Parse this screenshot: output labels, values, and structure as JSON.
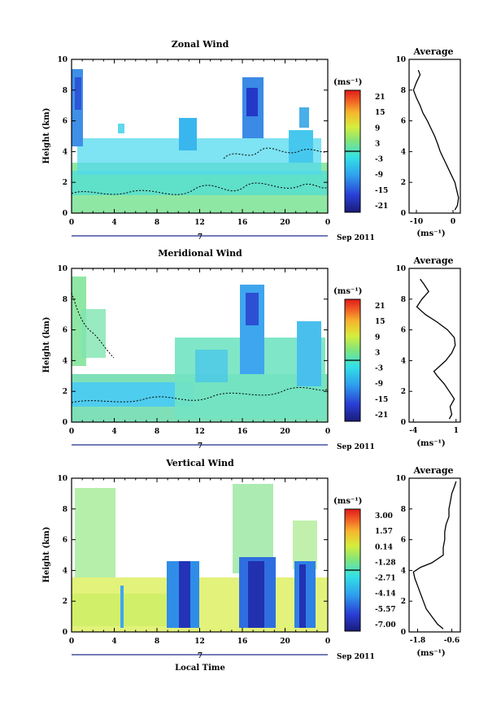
{
  "x_axis_label": "Local Time",
  "y_axis_label": "Height (km)",
  "avg_title": "Average",
  "unit": "(ms⁻¹)",
  "date": "Sep 2011",
  "day_label": "7",
  "x_ticks": [
    "0",
    "4",
    "8",
    "12",
    "16",
    "20",
    "0"
  ],
  "y_ticks": [
    "0",
    "2",
    "4",
    "6",
    "8",
    "10"
  ],
  "chart_data": [
    {
      "type": "heatmap",
      "title": "Zonal Wind",
      "xlim": [
        0,
        24
      ],
      "ylim": [
        0,
        10
      ],
      "colorbar_ticks": [
        "21",
        "15",
        "9",
        "3",
        "-3",
        "-9",
        "-15",
        "-21"
      ],
      "avg_ticks": [
        "-10",
        "0"
      ],
      "avg_xlim": [
        -12,
        2
      ],
      "avg_profile": {
        "height": [
          0.2,
          0.5,
          1,
          1.5,
          2,
          2.5,
          3,
          3.5,
          4,
          4.5,
          5,
          5.5,
          6,
          6.5,
          7,
          7.5,
          8,
          8.5,
          9,
          9.3
        ],
        "value": [
          0.5,
          1.2,
          1.5,
          1.0,
          0.5,
          -0.5,
          -1.5,
          -2.5,
          -3.5,
          -4.2,
          -5.0,
          -6.0,
          -7.0,
          -8.2,
          -9.0,
          -10.0,
          -10.8,
          -10.0,
          -9.0,
          -9.5
        ]
      }
    },
    {
      "type": "heatmap",
      "title": "Meridional Wind",
      "xlim": [
        0,
        24
      ],
      "ylim": [
        0,
        10
      ],
      "colorbar_ticks": [
        "21",
        "15",
        "9",
        "3",
        "-3",
        "-9",
        "-15",
        "-21"
      ],
      "avg_ticks": [
        "-4",
        "1"
      ],
      "avg_xlim": [
        -4.5,
        1.5
      ],
      "avg_profile": {
        "height": [
          0.2,
          0.5,
          1,
          1.5,
          2,
          2.5,
          3,
          3.3,
          3.6,
          4,
          4.5,
          5,
          5.5,
          6,
          6.5,
          7,
          7.5,
          8,
          8.5,
          9,
          9.3
        ],
        "value": [
          0.2,
          0.5,
          0.3,
          0.8,
          0.2,
          -0.4,
          -1.2,
          -1.6,
          -1.0,
          -0.2,
          0.5,
          0.9,
          0.8,
          0.0,
          -1.2,
          -2.6,
          -3.6,
          -3.0,
          -2.2,
          -2.8,
          -3.2
        ]
      }
    },
    {
      "type": "heatmap",
      "title": "Vertical Wind",
      "xlim": [
        0,
        24
      ],
      "ylim": [
        0,
        10
      ],
      "colorbar_ticks": [
        "3.00",
        "1.57",
        "0.14",
        "-1.28",
        "-2.71",
        "-4.14",
        "-5.57",
        "-7.00"
      ],
      "avg_ticks": [
        "-1.8",
        "-0.6"
      ],
      "avg_xlim": [
        -2.1,
        -0.3
      ],
      "avg_profile": {
        "height": [
          0.2,
          0.5,
          1,
          1.5,
          2,
          2.5,
          3,
          3.5,
          3.9,
          4.2,
          4.5,
          5,
          5.5,
          6,
          6.5,
          7,
          7.5,
          8,
          8.5,
          9,
          9.5,
          9.8
        ],
        "value": [
          -0.9,
          -1.1,
          -1.3,
          -1.5,
          -1.6,
          -1.7,
          -1.8,
          -1.9,
          -1.95,
          -1.7,
          -1.3,
          -0.9,
          -0.9,
          -0.85,
          -0.85,
          -0.8,
          -0.7,
          -0.7,
          -0.65,
          -0.6,
          -0.5,
          -0.45
        ]
      }
    }
  ]
}
